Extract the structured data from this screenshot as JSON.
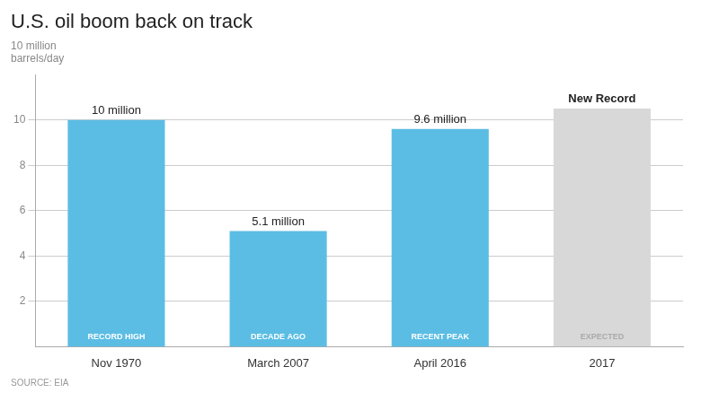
{
  "chart_data": {
    "type": "bar",
    "title": "U.S. oil boom back on track",
    "subtitle": [
      "10 million",
      "barrels/day"
    ],
    "source": "SOURCE: EIA",
    "categories": [
      "Nov 1970",
      "March 2007",
      "April 2016",
      "2017"
    ],
    "values": [
      10.0,
      5.1,
      9.6,
      10.5
    ],
    "value_labels": [
      "10 million",
      "5.1 million",
      "9.6 million",
      null
    ],
    "colors": [
      "#5bbde4",
      "#5bbde4",
      "#5bbde4",
      "#d8d8d8"
    ],
    "bar_labels": [
      "RECORD HIGH",
      "DECADE AGO",
      "RECENT PEAK",
      "EXPECTED"
    ],
    "bar_label_colors": [
      "#ffffff",
      "#ffffff",
      "#ffffff",
      "#aaaaaa"
    ],
    "annotations": [
      {
        "text": "New Record",
        "category": "2017"
      }
    ],
    "ylim": [
      0,
      12.0
    ],
    "yticks": [
      2,
      4,
      6,
      8,
      10
    ],
    "grid": true
  }
}
